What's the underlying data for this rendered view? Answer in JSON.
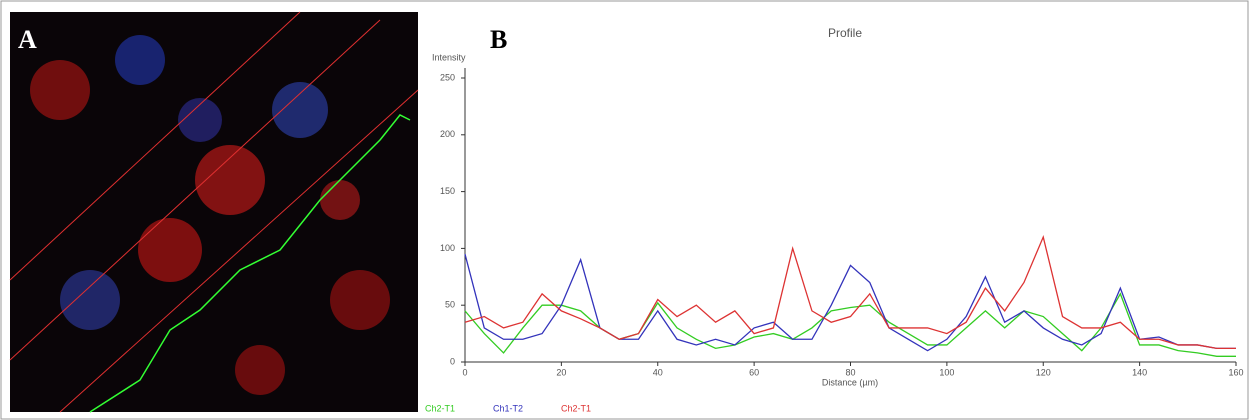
{
  "panel_a": {
    "label": "A"
  },
  "chart_data": {
    "type": "line",
    "panel_label": "B",
    "title": "Profile",
    "y_label": "Intensity",
    "x_label": "Distance (µm)",
    "x": [
      0,
      4,
      8,
      12,
      16,
      20,
      24,
      28,
      32,
      36,
      40,
      44,
      48,
      52,
      56,
      60,
      64,
      68,
      72,
      76,
      80,
      84,
      88,
      92,
      96,
      100,
      104,
      108,
      112,
      116,
      120,
      124,
      128,
      132,
      136,
      140,
      144,
      148,
      152,
      156,
      160
    ],
    "series": [
      {
        "name": "Ch2-T1",
        "color": "#33cc22",
        "values": [
          45,
          25,
          8,
          30,
          50,
          50,
          45,
          30,
          20,
          25,
          52,
          30,
          20,
          12,
          15,
          22,
          25,
          20,
          30,
          45,
          48,
          50,
          35,
          25,
          15,
          15,
          30,
          45,
          30,
          45,
          40,
          25,
          10,
          30,
          60,
          15,
          15,
          10,
          8,
          5,
          5
        ]
      },
      {
        "name": "Ch1-T2",
        "color": "#3333bb",
        "values": [
          95,
          30,
          20,
          20,
          25,
          50,
          90,
          30,
          20,
          20,
          45,
          20,
          15,
          20,
          15,
          30,
          35,
          20,
          20,
          50,
          85,
          70,
          30,
          20,
          10,
          20,
          40,
          75,
          35,
          45,
          30,
          20,
          15,
          25,
          65,
          20,
          22,
          15,
          15,
          12,
          12
        ]
      },
      {
        "name": "Ch2-T1",
        "color": "#dd3333",
        "values": [
          35,
          40,
          30,
          35,
          60,
          45,
          38,
          30,
          20,
          25,
          55,
          40,
          50,
          35,
          45,
          25,
          30,
          100,
          45,
          35,
          40,
          60,
          30,
          30,
          30,
          25,
          35,
          65,
          45,
          70,
          110,
          40,
          30,
          30,
          35,
          20,
          20,
          15,
          15,
          12,
          12
        ]
      }
    ],
    "xlim": [
      0,
      160
    ],
    "xticks": [
      0,
      20,
      40,
      60,
      80,
      100,
      120,
      140,
      160
    ],
    "ylim": [
      0,
      250
    ],
    "yticks": [
      0,
      50,
      100,
      150,
      200,
      250
    ]
  }
}
